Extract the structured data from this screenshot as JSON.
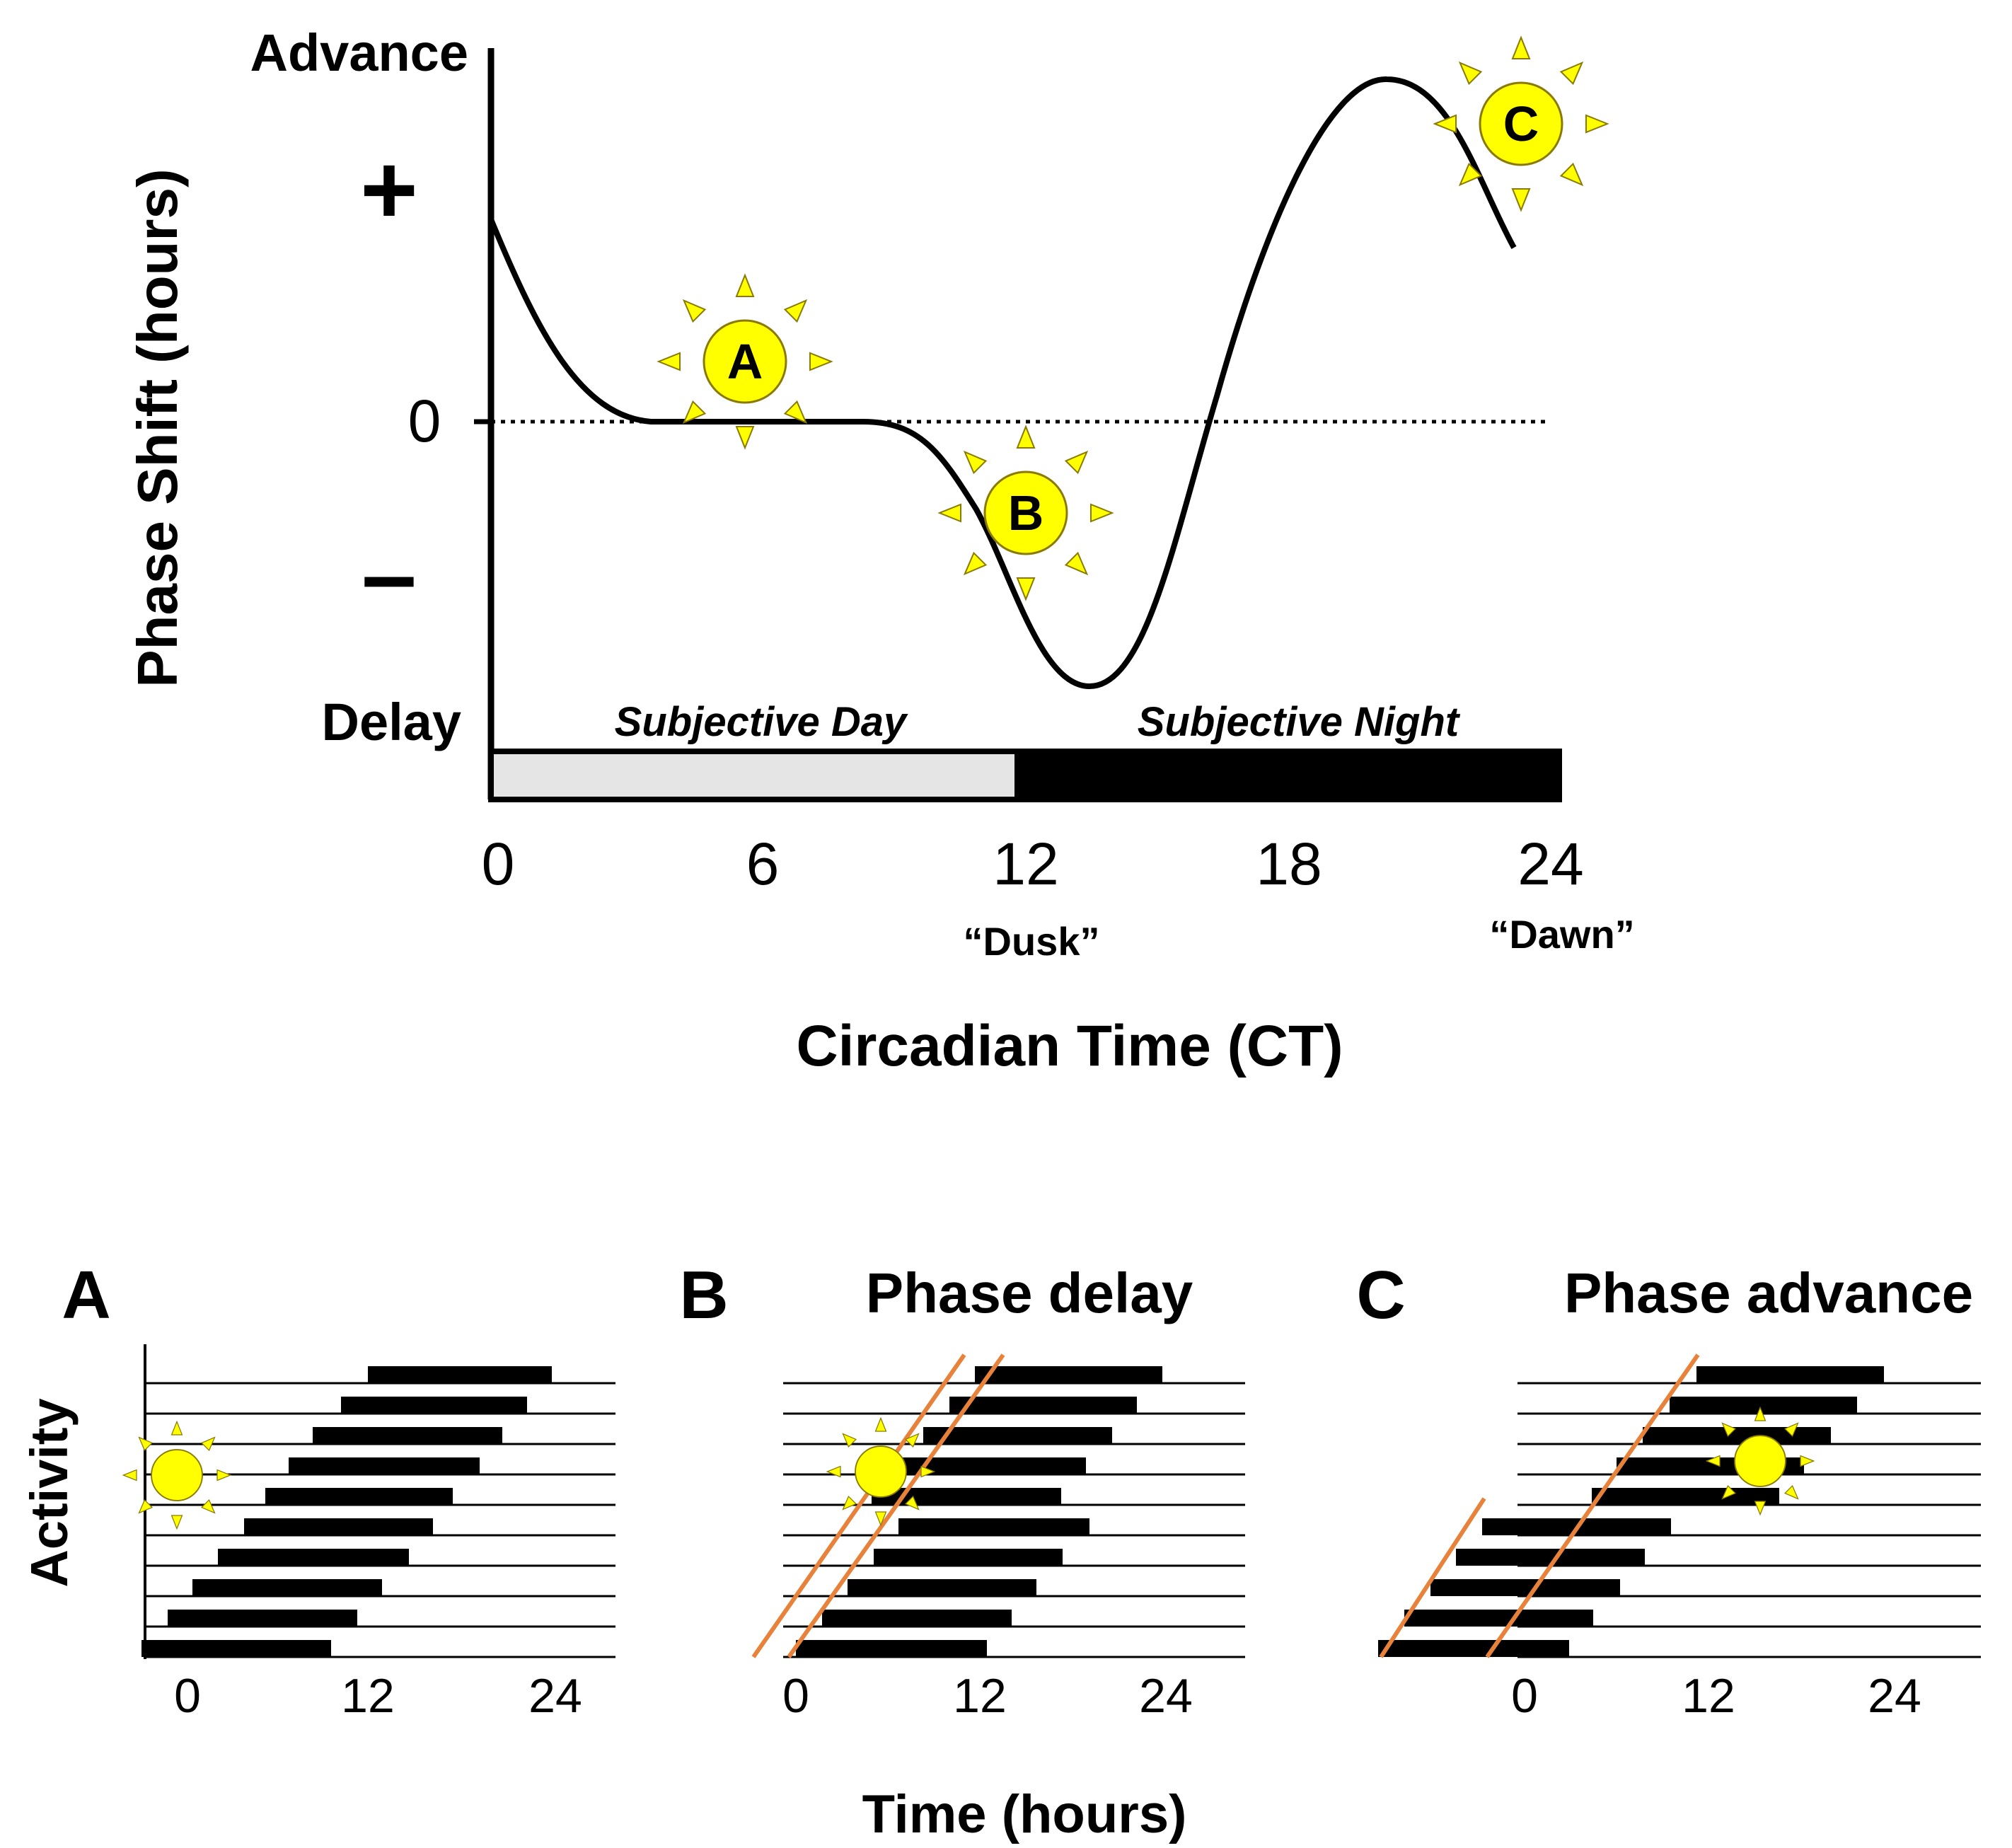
{
  "prc": {
    "y_axis_label": "Phase Shift (hours)",
    "advance_label": "Advance",
    "delay_label": "Delay",
    "plus_sign": "+",
    "minus_sign": "–",
    "zero_label": "0",
    "x_axis_label": "Circadian Time (CT)",
    "x_ticks": [
      "0",
      "6",
      "12",
      "18",
      "24"
    ],
    "dusk_label": "“Dusk”",
    "dawn_label": "“Dawn”",
    "subjective_day_label": "Subjective Day",
    "subjective_night_label": "Subjective Night",
    "light_markers": [
      {
        "letter": "A",
        "ct": 5.8
      },
      {
        "letter": "B",
        "ct": 12.2
      },
      {
        "letter": "C",
        "ct": 23.1
      }
    ]
  },
  "actograms": {
    "shared_x_label": "Time (hours)",
    "y_label": "Activity",
    "panels": [
      {
        "letter": "A",
        "title": "",
        "ticks": [
          "0",
          "12",
          "24"
        ]
      },
      {
        "letter": "B",
        "title": "Phase delay",
        "ticks": [
          "0",
          "12",
          "24"
        ]
      },
      {
        "letter": "C",
        "title": "Phase advance",
        "ticks": [
          "0",
          "12",
          "24"
        ]
      }
    ]
  },
  "colors": {
    "sun_fill": "#ffff00",
    "sun_stroke": "#8a7a00",
    "day_bar": "#e5e5e5",
    "night_bar": "#000000",
    "fit_line": "#e8823a"
  }
}
